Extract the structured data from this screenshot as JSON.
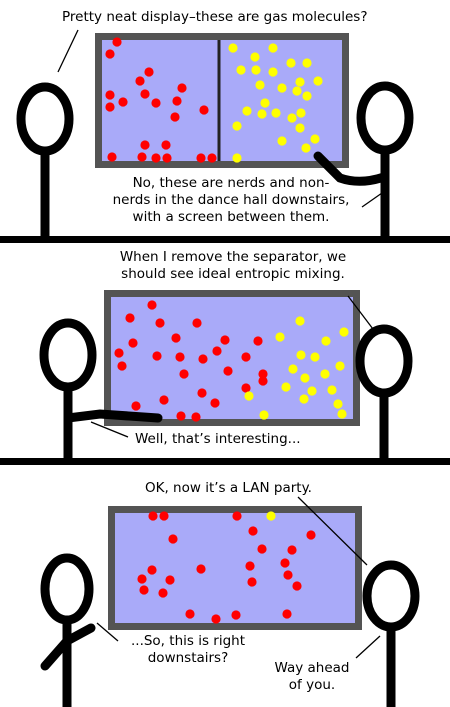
{
  "colors": {
    "screen": "#a9aaf9",
    "frame": "#545454",
    "nerd": "#ff0000",
    "non_nerd": "#ffff00",
    "ink": "#000000",
    "panel_divider": "#000000"
  },
  "panels": [
    {
      "captions": {
        "line1": "Pretty neat display–these are gas molecules?",
        "reply_line1": "No, these are nerds and non-",
        "reply_line2": "nerds in the dance hall downstairs,",
        "reply_line3": "with a screen between them."
      },
      "has_separator": true
    },
    {
      "captions": {
        "line1": "When I remove the separator, we",
        "line2": "should see ideal entropic mixing.",
        "reply": "Well, that’s interesting..."
      },
      "has_separator": false
    },
    {
      "captions": {
        "line1": "OK, now it’s a LAN party.",
        "left_line1": "...So, this is right",
        "left_line2": "downstairs?",
        "right_line1": "Way ahead",
        "right_line2": "of you."
      },
      "has_separator": false
    }
  ]
}
